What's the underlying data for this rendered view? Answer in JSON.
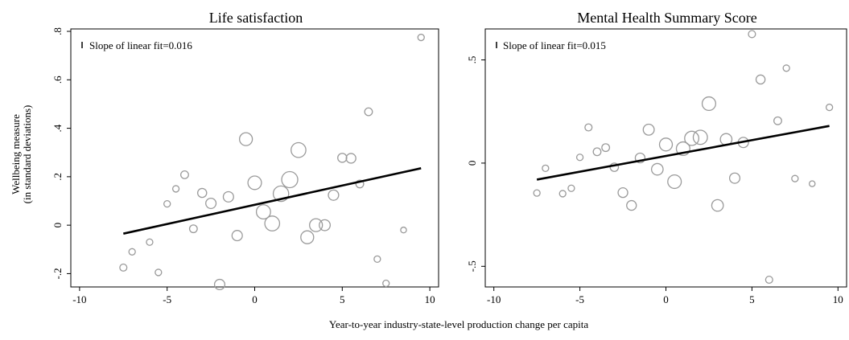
{
  "figure": {
    "ylabel_line1": "Wellbeing measure",
    "ylabel_line2": "(in standard deviations)",
    "xlabel": "Year-to-year industry-state-level production change per capita"
  },
  "chart_data": [
    {
      "type": "scatter",
      "title": "Life satisfaction",
      "legend_text": "Slope of linear fit=0.016",
      "legend_placement": "top-left",
      "xlim": [
        -10.5,
        10.5
      ],
      "ylim": [
        -0.255,
        0.81
      ],
      "xticks": [
        -10,
        -5,
        0,
        5,
        10
      ],
      "xtick_labels": [
        "-10",
        "-5",
        "0",
        "5",
        "10"
      ],
      "yticks": [
        -0.2,
        0,
        0.2,
        0.4,
        0.6,
        0.8
      ],
      "ytick_labels": [
        "-.2",
        "0",
        ".2",
        ".4",
        ".6",
        ".8"
      ],
      "fit_line": {
        "x": [
          -7.5,
          9.5
        ],
        "y": [
          -0.035,
          0.235
        ]
      },
      "points": [
        {
          "x": -7.5,
          "y": -0.175,
          "size": 1.1
        },
        {
          "x": -7.0,
          "y": -0.11,
          "size": 1.0
        },
        {
          "x": -6.0,
          "y": -0.07,
          "size": 1.0
        },
        {
          "x": -5.5,
          "y": -0.195,
          "size": 1.0
        },
        {
          "x": -5.0,
          "y": 0.088,
          "size": 1.0
        },
        {
          "x": -4.5,
          "y": 0.15,
          "size": 1.0
        },
        {
          "x": -4.0,
          "y": 0.208,
          "size": 1.2
        },
        {
          "x": -3.5,
          "y": -0.015,
          "size": 1.2
        },
        {
          "x": -3.0,
          "y": 0.133,
          "size": 1.4
        },
        {
          "x": -2.5,
          "y": 0.09,
          "size": 1.6
        },
        {
          "x": -2.0,
          "y": -0.245,
          "size": 1.6
        },
        {
          "x": -1.5,
          "y": 0.117,
          "size": 1.6
        },
        {
          "x": -1.0,
          "y": -0.043,
          "size": 1.6
        },
        {
          "x": -0.5,
          "y": 0.355,
          "size": 2.0
        },
        {
          "x": 0.0,
          "y": 0.175,
          "size": 2.1
        },
        {
          "x": 0.5,
          "y": 0.055,
          "size": 2.2
        },
        {
          "x": 1.0,
          "y": 0.007,
          "size": 2.3
        },
        {
          "x": 1.5,
          "y": 0.13,
          "size": 2.4
        },
        {
          "x": 2.0,
          "y": 0.188,
          "size": 2.5
        },
        {
          "x": 2.5,
          "y": 0.31,
          "size": 2.3
        },
        {
          "x": 3.0,
          "y": -0.05,
          "size": 2.0
        },
        {
          "x": 3.5,
          "y": 0.0,
          "size": 2.0
        },
        {
          "x": 4.0,
          "y": 0.0,
          "size": 1.7
        },
        {
          "x": 4.5,
          "y": 0.124,
          "size": 1.6
        },
        {
          "x": 5.0,
          "y": 0.278,
          "size": 1.4
        },
        {
          "x": 5.5,
          "y": 0.276,
          "size": 1.5
        },
        {
          "x": 6.0,
          "y": 0.17,
          "size": 1.2
        },
        {
          "x": 6.5,
          "y": 0.468,
          "size": 1.2
        },
        {
          "x": 7.0,
          "y": -0.14,
          "size": 1.0
        },
        {
          "x": 7.5,
          "y": -0.24,
          "size": 1.0
        },
        {
          "x": 8.5,
          "y": -0.02,
          "size": 0.9
        },
        {
          "x": 9.5,
          "y": 0.775,
          "size": 1.0
        }
      ]
    },
    {
      "type": "scatter",
      "title": "Mental Health Summary Score",
      "legend_text": "Slope of linear fit=0.015",
      "legend_placement": "top-left",
      "xlim": [
        -10.5,
        10.5
      ],
      "ylim": [
        -0.6,
        0.65
      ],
      "xticks": [
        -10,
        -5,
        0,
        5,
        10
      ],
      "xtick_labels": [
        "-10",
        "-5",
        "0",
        "5",
        "10"
      ],
      "yticks": [
        -0.5,
        0,
        0.5
      ],
      "ytick_labels": [
        "-.5",
        "0",
        ".5"
      ],
      "fit_line": {
        "x": [
          -7.5,
          9.5
        ],
        "y": [
          -0.08,
          0.18
        ]
      },
      "points": [
        {
          "x": -7.5,
          "y": -0.145,
          "size": 1.0
        },
        {
          "x": -7.0,
          "y": -0.025,
          "size": 1.0
        },
        {
          "x": -6.0,
          "y": -0.148,
          "size": 1.0
        },
        {
          "x": -5.5,
          "y": -0.122,
          "size": 1.0
        },
        {
          "x": -5.0,
          "y": 0.028,
          "size": 1.0
        },
        {
          "x": -4.5,
          "y": 0.173,
          "size": 1.1
        },
        {
          "x": -4.0,
          "y": 0.055,
          "size": 1.2
        },
        {
          "x": -3.5,
          "y": 0.075,
          "size": 1.2
        },
        {
          "x": -3.0,
          "y": -0.02,
          "size": 1.3
        },
        {
          "x": -2.5,
          "y": -0.143,
          "size": 1.5
        },
        {
          "x": -2.0,
          "y": -0.205,
          "size": 1.5
        },
        {
          "x": -1.5,
          "y": 0.025,
          "size": 1.5
        },
        {
          "x": -1.0,
          "y": 0.162,
          "size": 1.7
        },
        {
          "x": -0.5,
          "y": -0.03,
          "size": 1.8
        },
        {
          "x": 0.0,
          "y": 0.09,
          "size": 2.0
        },
        {
          "x": 0.5,
          "y": -0.09,
          "size": 2.1
        },
        {
          "x": 1.0,
          "y": 0.07,
          "size": 2.1
        },
        {
          "x": 1.5,
          "y": 0.12,
          "size": 2.2
        },
        {
          "x": 2.0,
          "y": 0.125,
          "size": 2.2
        },
        {
          "x": 2.5,
          "y": 0.288,
          "size": 2.1
        },
        {
          "x": 3.0,
          "y": -0.205,
          "size": 1.8
        },
        {
          "x": 3.5,
          "y": 0.115,
          "size": 1.8
        },
        {
          "x": 4.0,
          "y": -0.073,
          "size": 1.6
        },
        {
          "x": 4.5,
          "y": 0.1,
          "size": 1.6
        },
        {
          "x": 5.0,
          "y": 0.625,
          "size": 1.1
        },
        {
          "x": 5.5,
          "y": 0.405,
          "size": 1.4
        },
        {
          "x": 6.0,
          "y": -0.565,
          "size": 1.1
        },
        {
          "x": 6.5,
          "y": 0.205,
          "size": 1.2
        },
        {
          "x": 7.0,
          "y": 0.46,
          "size": 1.0
        },
        {
          "x": 7.5,
          "y": -0.075,
          "size": 1.0
        },
        {
          "x": 8.5,
          "y": -0.1,
          "size": 0.9
        },
        {
          "x": 9.5,
          "y": 0.27,
          "size": 1.0
        }
      ]
    }
  ]
}
